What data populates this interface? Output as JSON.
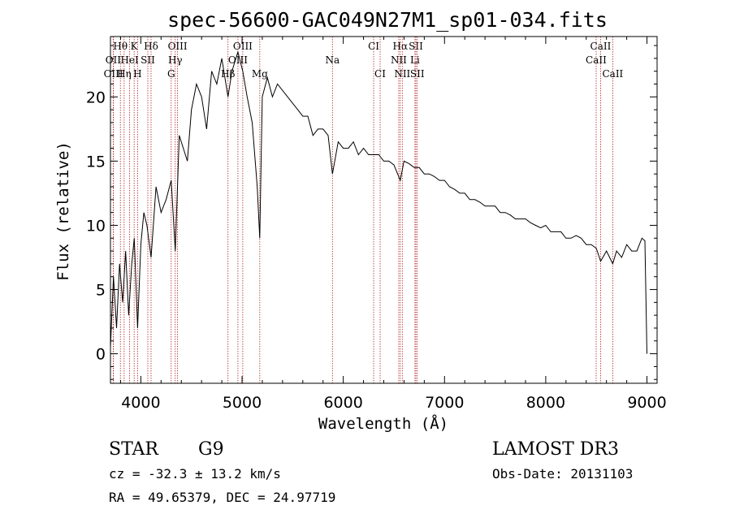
{
  "chart_data": {
    "type": "line",
    "title": "spec-56600-GAC049N27M1_sp01-034.fits",
    "xlabel": "Wavelength (Å)",
    "ylabel": "Flux (relative)",
    "xlim": [
      3700,
      9100
    ],
    "ylim": [
      -2.3,
      24.7
    ],
    "xticks": [
      4000,
      5000,
      6000,
      7000,
      8000,
      9000
    ],
    "yticks": [
      0,
      5,
      10,
      15,
      20
    ],
    "grid": false,
    "series": [
      {
        "name": "spectrum",
        "x": [
          3700,
          3730,
          3760,
          3790,
          3820,
          3850,
          3880,
          3910,
          3935,
          3968,
          4000,
          4030,
          4060,
          4101,
          4150,
          4200,
          4250,
          4300,
          4340,
          4380,
          4420,
          4460,
          4500,
          4550,
          4600,
          4650,
          4700,
          4750,
          4800,
          4861,
          4900,
          4959,
          5007,
          5050,
          5100,
          5150,
          5175,
          5200,
          5250,
          5300,
          5350,
          5400,
          5450,
          5500,
          5550,
          5600,
          5650,
          5700,
          5750,
          5800,
          5850,
          5893,
          5950,
          6000,
          6050,
          6100,
          6150,
          6200,
          6250,
          6300,
          6350,
          6400,
          6450,
          6500,
          6563,
          6600,
          6650,
          6700,
          6750,
          6800,
          6850,
          6900,
          6950,
          7000,
          7050,
          7100,
          7150,
          7200,
          7250,
          7300,
          7350,
          7400,
          7450,
          7500,
          7550,
          7600,
          7650,
          7700,
          7750,
          7800,
          7850,
          7900,
          7950,
          8000,
          8050,
          8100,
          8150,
          8200,
          8250,
          8300,
          8350,
          8400,
          8450,
          8500,
          8542,
          8600,
          8662,
          8700,
          8750,
          8800,
          8850,
          8900,
          8950,
          8980,
          9000
        ],
        "values": [
          0.5,
          6,
          2,
          7,
          4,
          8,
          3,
          7,
          9,
          2,
          8.5,
          11,
          10,
          7.5,
          13,
          11,
          12,
          13.5,
          8,
          17,
          16,
          15,
          19,
          21,
          20,
          17.5,
          22,
          21,
          23,
          20,
          22,
          23.5,
          22,
          20,
          18,
          13,
          9,
          20,
          21.5,
          20,
          21,
          20.5,
          20,
          19.5,
          19,
          18.5,
          18.5,
          17,
          17.5,
          17.5,
          17,
          14,
          16.5,
          16,
          16,
          16.5,
          15.5,
          16,
          15.5,
          15.5,
          15.5,
          15,
          15,
          14.7,
          13.5,
          15,
          14.8,
          14.5,
          14.5,
          14,
          14,
          13.8,
          13.5,
          13.5,
          13,
          12.8,
          12.5,
          12.5,
          12,
          12,
          11.8,
          11.5,
          11.5,
          11.5,
          11,
          11,
          10.8,
          10.5,
          10.5,
          10.5,
          10.2,
          10,
          9.8,
          10,
          9.5,
          9.5,
          9.5,
          9,
          9,
          9.2,
          9,
          8.5,
          8.5,
          8.2,
          7.2,
          8,
          7,
          8,
          7.5,
          8.5,
          8,
          8,
          9,
          8.8,
          0
        ]
      }
    ],
    "spectral_lines": [
      {
        "label": "Hθ",
        "x": 3798,
        "row": 0
      },
      {
        "label": "K",
        "x": 3934,
        "row": 0
      },
      {
        "label": "Hδ",
        "x": 4101,
        "row": 0
      },
      {
        "label": "OIII",
        "x": 4363,
        "row": 0
      },
      {
        "label": "OIII",
        "x": 5007,
        "row": 0
      },
      {
        "label": "CI",
        "x": 6300,
        "row": 0
      },
      {
        "label": "Hα",
        "x": 6563,
        "row": 0
      },
      {
        "label": "SII",
        "x": 6717,
        "row": 0
      },
      {
        "label": "CaII",
        "x": 8542,
        "row": 0
      },
      {
        "label": "OII",
        "x": 3727,
        "row": 1
      },
      {
        "label": "HeI",
        "x": 3889,
        "row": 1
      },
      {
        "label": "SII",
        "x": 4069,
        "row": 1
      },
      {
        "label": "Hγ",
        "x": 4340,
        "row": 1
      },
      {
        "label": "OIII",
        "x": 4959,
        "row": 1
      },
      {
        "label": "Na",
        "x": 5893,
        "row": 1
      },
      {
        "label": "NII",
        "x": 6548,
        "row": 1
      },
      {
        "label": "Li",
        "x": 6708,
        "row": 1
      },
      {
        "label": "CaII",
        "x": 8498,
        "row": 1
      },
      {
        "label": "OIII",
        "x": 3729,
        "row": 2
      },
      {
        "label": "Hη",
        "x": 3835,
        "row": 2
      },
      {
        "label": "H",
        "x": 3968,
        "row": 2
      },
      {
        "label": "G",
        "x": 4300,
        "row": 2
      },
      {
        "label": "Hβ",
        "x": 4861,
        "row": 2
      },
      {
        "label": "Mg",
        "x": 5175,
        "row": 2
      },
      {
        "label": "CI",
        "x": 6364,
        "row": 2
      },
      {
        "label": "NII",
        "x": 6583,
        "row": 2
      },
      {
        "label": "SII",
        "x": 6731,
        "row": 2
      },
      {
        "label": "CaII",
        "x": 8662,
        "row": 2
      }
    ]
  },
  "info": {
    "class": "STAR",
    "subclass": "G9",
    "survey": "LAMOST DR3",
    "cz": "cz = -32.3 ± 13.2 km/s",
    "obs_date": "Obs-Date: 20131103",
    "coords": "RA =  49.65379, DEC =  24.97719"
  },
  "colors": {
    "axis": "#000000",
    "spectrum": "#000000",
    "line_marker": "#b22222"
  }
}
